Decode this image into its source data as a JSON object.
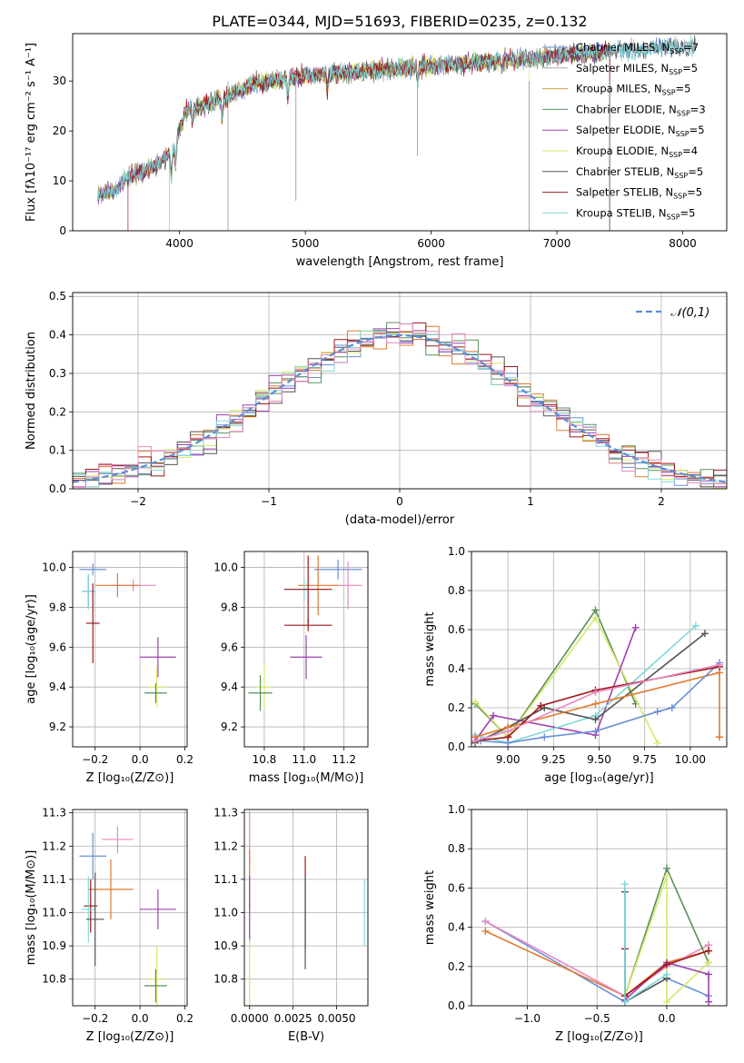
{
  "figure_title": "PLATE=0344, MJD=51693, FIBERID=0235, z=0.132",
  "colors": [
    "#6a8fd8",
    "#e07a2e",
    "#5a8f5a",
    "#a040b0",
    "#d8e868",
    "#555555",
    "#a01818",
    "#80d8d8",
    "#e888c0",
    "#c8a040"
  ],
  "chart_data": [
    {
      "id": "spectrum",
      "type": "line",
      "xlabel": "wavelength [Angstrom, rest frame]",
      "ylabel": "Flux [fλ10⁻¹⁷ erg cm⁻² s⁻¹ A⁻¹]",
      "xlim": [
        3150,
        8350
      ],
      "ylim": [
        0,
        39.5
      ],
      "xticks": [
        4000,
        5000,
        6000,
        7000,
        8000
      ],
      "yticks": [
        0,
        10,
        20,
        30
      ],
      "legend_position": "right",
      "legend": [
        "Chabrier MILES, N_SSP=7",
        "Salpeter MILES, N_SSP=5",
        "Kroupa MILES, N_SSP=5",
        "Chabrier ELODIE, N_SSP=3",
        "Salpeter ELODIE, N_SSP=5",
        "Kroupa ELODIE, N_SSP=4",
        "Chabrier STELIB, N_SSP=5",
        "Salpeter STELIB, N_SSP=5",
        "Kroupa STELIB, N_SSP=5"
      ],
      "legend_colors": [
        "#6a8fd8",
        "#aaaaaa",
        "#c8a040",
        "#5a8f5a",
        "#a040b0",
        "#d8e868",
        "#555555",
        "#a01818",
        "#80d8d8"
      ],
      "continuum": [
        [
          3350,
          7
        ],
        [
          3500,
          8.5
        ],
        [
          3600,
          11
        ],
        [
          3800,
          13
        ],
        [
          3950,
          16
        ],
        [
          4050,
          24
        ],
        [
          4300,
          26
        ],
        [
          4600,
          29.5
        ],
        [
          5000,
          31
        ],
        [
          5500,
          32
        ],
        [
          6000,
          33
        ],
        [
          6500,
          34
        ],
        [
          7000,
          35
        ],
        [
          7400,
          36
        ],
        [
          8000,
          37
        ],
        [
          8100,
          37
        ]
      ]
    },
    {
      "id": "residuals",
      "type": "step",
      "xlabel": "(data-model)/error",
      "ylabel": "Normed distribution",
      "xlim": [
        -2.5,
        2.5
      ],
      "ylim": [
        0,
        0.51
      ],
      "xticks": [
        -2,
        -1,
        0,
        1,
        2
      ],
      "yticks": [
        0.0,
        0.1,
        0.2,
        0.3,
        0.4,
        0.5
      ],
      "legend": [
        "𝒩(0,1)"
      ],
      "legend_position": "top-right",
      "bin_width": 0.1
    },
    {
      "id": "age-vs-Z",
      "type": "errorbar",
      "xlabel": "Z [log₁₀(Z/Z⊙)]",
      "ylabel": "age [log₁₀(age/yr)]",
      "xlim": [
        -0.3,
        0.21
      ],
      "ylim": [
        9.1,
        10.08
      ],
      "xticks": [
        -0.2,
        0.0,
        0.2
      ],
      "yticks": [
        9.2,
        9.4,
        9.6,
        9.8,
        10.0
      ],
      "points": [
        {
          "x": -0.21,
          "y": 9.99,
          "xerr": 0.06,
          "yerr": 0.03,
          "c": 0
        },
        {
          "x": -0.03,
          "y": 9.91,
          "xerr": 0.1,
          "yerr": 0.03,
          "c": 8
        },
        {
          "x": -0.1,
          "y": 9.91,
          "xerr": 0.1,
          "yerr": 0.06,
          "c": 1
        },
        {
          "x": -0.23,
          "y": 9.88,
          "xerr": 0.03,
          "yerr": 0.08,
          "c": 3
        },
        {
          "x": -0.23,
          "y": 9.88,
          "xerr": 0.03,
          "yerr": 0.09,
          "c": 7
        },
        {
          "x": -0.21,
          "y": 9.72,
          "xerr": 0.03,
          "yerr": 0.2,
          "c": 6
        },
        {
          "x": 0.08,
          "y": 9.55,
          "xerr": 0.08,
          "yerr": 0.1,
          "c": 3
        },
        {
          "x": 0.075,
          "y": 9.4,
          "xerr": 0.04,
          "yerr": 0.1,
          "c": 4
        },
        {
          "x": 0.07,
          "y": 9.37,
          "xerr": 0.05,
          "yerr": 0.05,
          "c": 2
        }
      ]
    },
    {
      "id": "age-vs-mass",
      "type": "errorbar",
      "xlabel": "mass [log₁₀(M/M⊙)]",
      "ylabel": "",
      "xlim": [
        10.7,
        11.32
      ],
      "ylim": [
        9.1,
        10.08
      ],
      "xticks": [
        10.8,
        11.0,
        11.2
      ],
      "yticks": [
        9.2,
        9.4,
        9.6,
        9.8,
        10.0
      ],
      "points": [
        {
          "x": 11.17,
          "y": 9.99,
          "xerr": 0.12,
          "yerr": 0.05,
          "c": 0
        },
        {
          "x": 11.22,
          "y": 9.91,
          "xerr": 0.07,
          "yerr": 0.12,
          "c": 8
        },
        {
          "x": 11.07,
          "y": 9.91,
          "xerr": 0.1,
          "yerr": 0.15,
          "c": 1
        },
        {
          "x": 11.0,
          "y": 9.89,
          "xerr": 0.1,
          "yerr": 0.05,
          "c": 7
        },
        {
          "x": 11.02,
          "y": 9.89,
          "xerr": 0.12,
          "yerr": 0.17,
          "c": 6
        },
        {
          "x": 11.02,
          "y": 9.71,
          "xerr": 0.12,
          "yerr": 0.03,
          "c": 6
        },
        {
          "x": 11.01,
          "y": 9.55,
          "xerr": 0.08,
          "yerr": 0.11,
          "c": 3
        },
        {
          "x": 10.8,
          "y": 9.4,
          "xerr": 0.04,
          "yerr": 0.11,
          "c": 4
        },
        {
          "x": 10.78,
          "y": 9.37,
          "xerr": 0.06,
          "yerr": 0.09,
          "c": 2
        }
      ]
    },
    {
      "id": "mass-weight-vs-age",
      "type": "line",
      "xlabel": "age [log₁₀(age/yr)]",
      "ylabel": "mass weight",
      "xlim": [
        8.8,
        10.2
      ],
      "ylim": [
        0,
        1.0
      ],
      "xticks": [
        9.0,
        9.25,
        9.5,
        9.75,
        10.0
      ],
      "yticks": [
        0.0,
        0.2,
        0.4,
        0.6,
        0.8,
        1.0
      ],
      "series": [
        {
          "c": 2,
          "x": [
            8.82,
            9.0,
            9.48,
            9.7
          ],
          "y": [
            0.22,
            0.05,
            0.7,
            0.22
          ]
        },
        {
          "c": 4,
          "x": [
            8.82,
            9.0,
            9.48,
            9.82
          ],
          "y": [
            0.23,
            0.05,
            0.66,
            0.02
          ]
        },
        {
          "c": 3,
          "x": [
            8.82,
            8.92,
            9.48,
            9.7
          ],
          "y": [
            0.03,
            0.16,
            0.06,
            0.61
          ]
        },
        {
          "c": 7,
          "x": [
            8.82,
            9.0,
            9.48,
            10.03
          ],
          "y": [
            0.06,
            0.02,
            0.16,
            0.62
          ]
        },
        {
          "c": 5,
          "x": [
            8.82,
            9.0,
            9.2,
            9.48,
            10.08
          ],
          "y": [
            0.02,
            0.1,
            0.2,
            0.14,
            0.58
          ]
        },
        {
          "c": 1,
          "x": [
            8.82,
            9.0,
            9.48,
            10.16,
            10.16
          ],
          "y": [
            0.05,
            0.1,
            0.22,
            0.38,
            0.05
          ]
        },
        {
          "c": 0,
          "x": [
            8.85,
            9.0,
            9.2,
            9.48,
            9.82,
            9.9,
            10.16
          ],
          "y": [
            0.03,
            0.02,
            0.05,
            0.08,
            0.18,
            0.2,
            0.43
          ]
        },
        {
          "c": 6,
          "x": [
            8.82,
            9.0,
            9.18,
            9.48,
            10.16
          ],
          "y": [
            0.03,
            0.05,
            0.21,
            0.29,
            0.41
          ]
        },
        {
          "c": 8,
          "x": [
            8.82,
            9.0,
            9.48,
            10.16
          ],
          "y": [
            0.03,
            0.08,
            0.28,
            0.42
          ]
        }
      ]
    },
    {
      "id": "mass-vs-Z",
      "type": "errorbar",
      "xlabel": "Z [log₁₀(Z/Z⊙)]",
      "ylabel": "mass [log₁₀(M/M⊙)]",
      "xlim": [
        -0.3,
        0.21
      ],
      "ylim": [
        10.72,
        11.31
      ],
      "xticks": [
        -0.2,
        0.0,
        0.2
      ],
      "yticks": [
        10.8,
        10.9,
        11.0,
        11.1,
        11.2,
        11.3
      ],
      "points": [
        {
          "x": -0.1,
          "y": 11.22,
          "xerr": 0.07,
          "yerr": 0.04,
          "c": 8
        },
        {
          "x": -0.21,
          "y": 11.17,
          "xerr": 0.06,
          "yerr": 0.07,
          "c": 0
        },
        {
          "x": -0.13,
          "y": 11.07,
          "xerr": 0.1,
          "yerr": 0.09,
          "c": 1
        },
        {
          "x": -0.22,
          "y": 11.02,
          "xerr": 0.03,
          "yerr": 0.08,
          "c": 6
        },
        {
          "x": -0.23,
          "y": 11.01,
          "xerr": 0.03,
          "yerr": 0.1,
          "c": 7
        },
        {
          "x": -0.2,
          "y": 10.98,
          "xerr": 0.04,
          "yerr": 0.14,
          "c": 5
        },
        {
          "x": 0.08,
          "y": 11.01,
          "xerr": 0.08,
          "yerr": 0.06,
          "c": 3
        },
        {
          "x": 0.075,
          "y": 10.8,
          "xerr": 0.04,
          "yerr": 0.1,
          "c": 4
        },
        {
          "x": 0.07,
          "y": 10.78,
          "xerr": 0.05,
          "yerr": 0.05,
          "c": 2
        }
      ]
    },
    {
      "id": "mass-vs-EBV",
      "type": "errorbar",
      "xlabel": "E(B-V)",
      "ylabel": "",
      "xlim": [
        -0.0003,
        0.0068
      ],
      "ylim": [
        10.72,
        11.31
      ],
      "xticks": [
        0.0,
        0.0025,
        0.005
      ],
      "xticklabels": [
        "0.0000",
        "0.0025",
        "0.0050"
      ],
      "yticks": [
        10.8,
        10.9,
        11.0,
        11.1,
        11.2,
        11.3
      ],
      "points": [
        {
          "x": 0.0,
          "y": 11.22,
          "xerr": 0,
          "yerr": 0.08,
          "c": 8
        },
        {
          "x": 0.0,
          "y": 11.1,
          "xerr": 0,
          "yerr": 0.09,
          "c": 1
        },
        {
          "x": 0.0,
          "y": 11.01,
          "xerr": 0,
          "yerr": 0.1,
          "c": 3
        },
        {
          "x": 0.0,
          "y": 10.82,
          "xerr": 0,
          "yerr": 0.1,
          "c": 4
        },
        {
          "x": 0.0032,
          "y": 11.03,
          "xerr": 0,
          "yerr": 0.14,
          "c": 6
        },
        {
          "x": 0.0032,
          "y": 10.97,
          "xerr": 0,
          "yerr": 0.14,
          "c": 5
        },
        {
          "x": 0.0066,
          "y": 11.0,
          "xerr": 0,
          "yerr": 0.1,
          "c": 7
        }
      ]
    },
    {
      "id": "mass-weight-vs-Z",
      "type": "line",
      "xlabel": "Z [log₁₀(Z/Z⊙)]",
      "ylabel": "mass weight",
      "xlim": [
        -1.4,
        0.43
      ],
      "ylim": [
        0,
        1.0
      ],
      "xticks": [
        -1.0,
        -0.5,
        0.0
      ],
      "yticks": [
        0.0,
        0.2,
        0.4,
        0.6,
        0.8,
        1.0
      ],
      "series": [
        {
          "c": 0,
          "x": [
            -1.3,
            -0.3,
            0.0,
            0.3
          ],
          "y": [
            0.43,
            0.02,
            0.14,
            0.05
          ]
        },
        {
          "c": 1,
          "x": [
            -1.3,
            -0.3,
            0.0,
            0.3
          ],
          "y": [
            0.38,
            0.05,
            0.22,
            0.28
          ]
        },
        {
          "c": 8,
          "x": [
            -1.3,
            -0.3,
            0.0,
            0.3
          ],
          "y": [
            0.43,
            0.05,
            0.2,
            0.31
          ]
        },
        {
          "c": 2,
          "x": [
            -0.3,
            0.0,
            0.3
          ],
          "y": [
            0.05,
            0.7,
            0.22
          ]
        },
        {
          "c": 4,
          "x": [
            -0.3,
            0.0,
            0.0,
            0.3
          ],
          "y": [
            0.05,
            0.66,
            0.02,
            0.22
          ]
        },
        {
          "c": 3,
          "x": [
            -0.3,
            0.0,
            0.3,
            0.3
          ],
          "y": [
            0.03,
            0.22,
            0.16,
            0.02
          ]
        },
        {
          "c": 6,
          "x": [
            -0.3,
            -0.3,
            0.0,
            0.3
          ],
          "y": [
            0.29,
            0.05,
            0.21,
            0.28
          ]
        },
        {
          "c": 5,
          "x": [
            -0.3,
            -0.3,
            0.0
          ],
          "y": [
            0.58,
            0.02,
            0.14
          ]
        },
        {
          "c": 7,
          "x": [
            -0.3,
            -0.3,
            0.0
          ],
          "y": [
            0.62,
            0.02,
            0.16
          ]
        }
      ]
    }
  ]
}
